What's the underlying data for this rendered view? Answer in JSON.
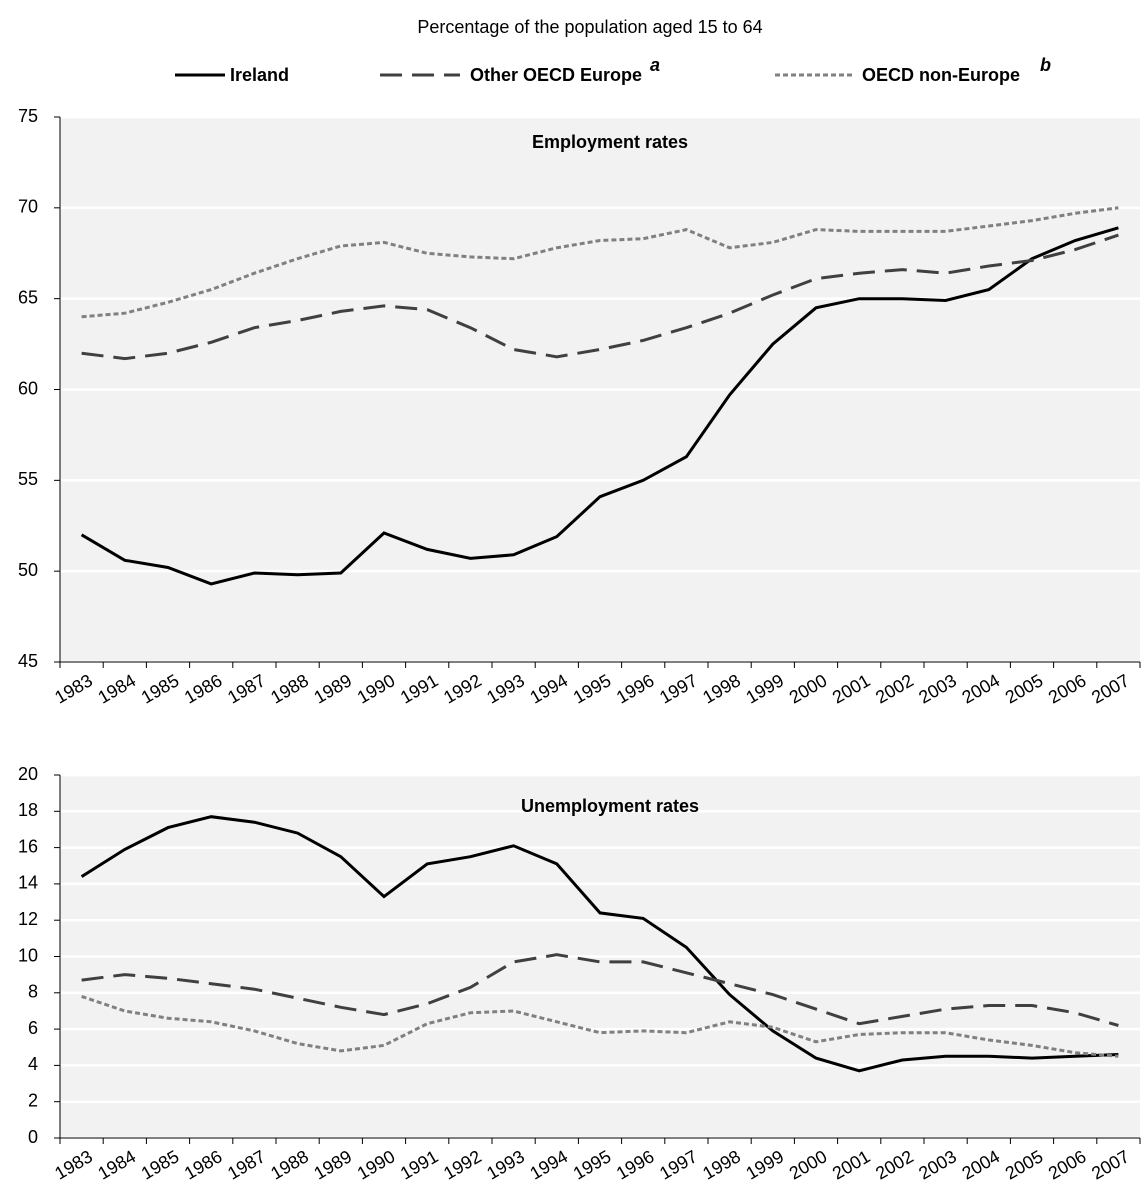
{
  "chart_data": [
    {
      "type": "line",
      "subtitle": "Percentage of the population aged 15 to 64",
      "title": "Employment rates",
      "categories": [
        "1983",
        "1984",
        "1985",
        "1986",
        "1987",
        "1988",
        "1989",
        "1990",
        "1991",
        "1992",
        "1993",
        "1994",
        "1995",
        "1996",
        "1997",
        "1998",
        "1999",
        "2000",
        "2001",
        "2002",
        "2003",
        "2004",
        "2005",
        "2006",
        "2007"
      ],
      "series": [
        {
          "name": "Ireland",
          "color": "#000000",
          "dash": "solid",
          "values": [
            52,
            50.6,
            50.2,
            49.3,
            49.9,
            49.8,
            49.9,
            52.1,
            51.2,
            50.7,
            50.9,
            51.9,
            54.1,
            55.0,
            56.3,
            59.7,
            62.5,
            64.5,
            65.0,
            65.0,
            64.9,
            65.5,
            67.2,
            68.2,
            68.9
          ]
        },
        {
          "name": "Other OECD Europe",
          "note": "a",
          "color": "#404040",
          "dash": "dashed",
          "values": [
            62.0,
            61.7,
            62.0,
            62.6,
            63.4,
            63.8,
            64.3,
            64.6,
            64.4,
            63.4,
            62.2,
            61.8,
            62.2,
            62.7,
            63.4,
            64.2,
            65.2,
            66.1,
            66.4,
            66.6,
            66.4,
            66.8,
            67.1,
            67.7,
            68.5
          ]
        },
        {
          "name": "OECD non-Europe",
          "note": "b",
          "color": "#808080",
          "dash": "dotted",
          "values": [
            64.0,
            64.2,
            64.8,
            65.5,
            66.4,
            67.2,
            67.9,
            68.1,
            67.5,
            67.3,
            67.2,
            67.8,
            68.2,
            68.3,
            68.8,
            67.8,
            68.1,
            68.8,
            68.7,
            68.7,
            68.7,
            69.0,
            69.3,
            69.7,
            70.0
          ]
        }
      ],
      "ylim": [
        45,
        75
      ],
      "yticks": [
        45,
        50,
        55,
        60,
        65,
        70,
        75
      ],
      "grid": true
    },
    {
      "type": "line",
      "title": "Unemployment rates",
      "categories": [
        "1983",
        "1984",
        "1985",
        "1986",
        "1987",
        "1988",
        "1989",
        "1990",
        "1991",
        "1992",
        "1993",
        "1994",
        "1995",
        "1996",
        "1997",
        "1998",
        "1999",
        "2000",
        "2001",
        "2002",
        "2003",
        "2004",
        "2005",
        "2006",
        "2007"
      ],
      "series": [
        {
          "color": "#000000",
          "dash": "solid",
          "values": [
            14.4,
            15.9,
            17.1,
            17.7,
            17.4,
            16.8,
            15.5,
            13.3,
            15.1,
            15.5,
            16.1,
            15.1,
            12.4,
            12.1,
            10.5,
            7.9,
            5.9,
            4.4,
            3.7,
            4.3,
            4.5,
            4.5,
            4.4,
            4.5,
            4.6
          ]
        },
        {
          "color": "#404040",
          "dash": "dashed",
          "values": [
            8.7,
            9.0,
            8.8,
            8.5,
            8.2,
            7.7,
            7.2,
            6.8,
            7.4,
            8.3,
            9.7,
            10.1,
            9.7,
            9.7,
            9.1,
            8.5,
            7.9,
            7.1,
            6.3,
            6.7,
            7.1,
            7.3,
            7.3,
            6.9,
            6.2
          ]
        },
        {
          "color": "#808080",
          "dash": "dotted",
          "values": [
            7.8,
            7.0,
            6.6,
            6.4,
            5.9,
            5.2,
            4.8,
            5.1,
            6.3,
            6.9,
            7.0,
            6.4,
            5.8,
            5.9,
            5.8,
            6.4,
            6.1,
            5.3,
            5.7,
            5.8,
            5.8,
            5.4,
            5.1,
            4.7,
            4.5
          ]
        }
      ],
      "ylim": [
        0,
        20
      ],
      "yticks": [
        0,
        2,
        4,
        6,
        8,
        10,
        12,
        14,
        16,
        18,
        20
      ],
      "grid": true
    }
  ]
}
